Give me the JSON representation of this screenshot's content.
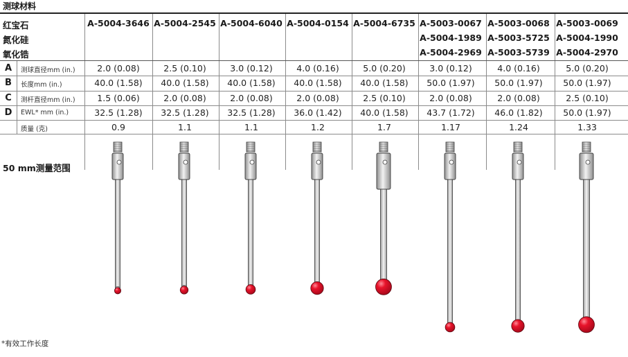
{
  "title": "测球材料",
  "materials": [
    "红宝石",
    "氮化硅",
    "氧化锆"
  ],
  "columns": [
    {
      "parts": [
        "A-5004-3646"
      ],
      "diameter": "2.0 (0.08)",
      "length": "40.0 (1.58)",
      "stem": "1.5 (0.06)",
      "ewl": "32.5 (1.28)",
      "mass": "0.9",
      "ball_mm": 2.0,
      "len_mm": 40,
      "stem_mm": 1.5,
      "tip_fraction": 0.2
    },
    {
      "parts": [
        "A-5004-2545"
      ],
      "diameter": "2.5 (0.10)",
      "length": "40.0 (1.58)",
      "stem": "2.0 (0.08)",
      "ewl": "32.5 (1.28)",
      "mass": "1.1",
      "ball_mm": 2.5,
      "len_mm": 40,
      "stem_mm": 2.0,
      "tip_fraction": 0.2
    },
    {
      "parts": [
        "A-5004-6040"
      ],
      "diameter": "3.0 (0.12)",
      "length": "40.0 (1.58)",
      "stem": "2.0 (0.08)",
      "ewl": "32.5 (1.28)",
      "mass": "1.1",
      "ball_mm": 3.0,
      "len_mm": 40,
      "stem_mm": 2.0,
      "tip_fraction": 0.0
    },
    {
      "parts": [
        "A-5004-0154"
      ],
      "diameter": "4.0 (0.16)",
      "length": "40.0 (1.58)",
      "stem": "2.0 (0.08)",
      "ewl": "36.0 (1.42)",
      "mass": "1.2",
      "ball_mm": 4.0,
      "len_mm": 40,
      "stem_mm": 2.0,
      "tip_fraction": 0.0
    },
    {
      "parts": [
        "A-5004-6735"
      ],
      "diameter": "5.0 (0.20)",
      "length": "40.0 (1.58)",
      "stem": "2.5 (0.10)",
      "ewl": "40.0 (1.58)",
      "mass": "1.7",
      "ball_mm": 5.0,
      "len_mm": 40,
      "stem_mm": 2.5,
      "tip_fraction": 0.0
    },
    {
      "parts": [
        "A-5003-0067",
        "A-5004-1989",
        "A-5004-2969"
      ],
      "diameter": "3.0 (0.12)",
      "length": "50.0 (1.97)",
      "stem": "2.0 (0.08)",
      "ewl": "43.7 (1.72)",
      "mass": "1.17",
      "ball_mm": 3.0,
      "len_mm": 50,
      "stem_mm": 2.0,
      "tip_fraction": 0.0
    },
    {
      "parts": [
        "A-5003-0068",
        "A-5003-5725",
        "A-5003-5739"
      ],
      "diameter": "4.0 (0.16)",
      "length": "50.0 (1.97)",
      "stem": "2.0 (0.08)",
      "ewl": "46.0 (1.82)",
      "mass": "1.24",
      "ball_mm": 4.0,
      "len_mm": 50,
      "stem_mm": 2.0,
      "tip_fraction": 0.0
    },
    {
      "parts": [
        "A-5003-0069",
        "A-5004-1990",
        "A-5004-2970"
      ],
      "diameter": "5.0 (0.20)",
      "length": "50.0 (1.97)",
      "stem": "2.5 (0.10)",
      "ewl": "50.0 (1.97)",
      "mass": "1.33",
      "ball_mm": 5.0,
      "len_mm": 50,
      "stem_mm": 2.5,
      "tip_fraction": 0.0
    }
  ],
  "rows": [
    {
      "key": "A",
      "label": "测球直径mm (in.)",
      "field": "diameter"
    },
    {
      "key": "B",
      "label": "长度mm (in.)",
      "field": "length"
    },
    {
      "key": "C",
      "label": "测杆直径mm (in.)",
      "field": "stem"
    },
    {
      "key": "D",
      "label": "EWL* mm (in.)",
      "field": "ewl"
    },
    {
      "key": "",
      "label": "质量 (克)",
      "field": "mass"
    }
  ],
  "range_label": "50 mm测量范围",
  "footnote": "*有效工作长度",
  "colors": {
    "ball": "#e8142b",
    "ball_dark": "#a4081a",
    "ball_highlight": "#ff8a96",
    "metal_light": "#f2f2f2",
    "metal_dark": "#8f8f8f",
    "stem": "#d4d4d4",
    "outline": "#3a3a3a",
    "grid": "#8a8a8a"
  }
}
